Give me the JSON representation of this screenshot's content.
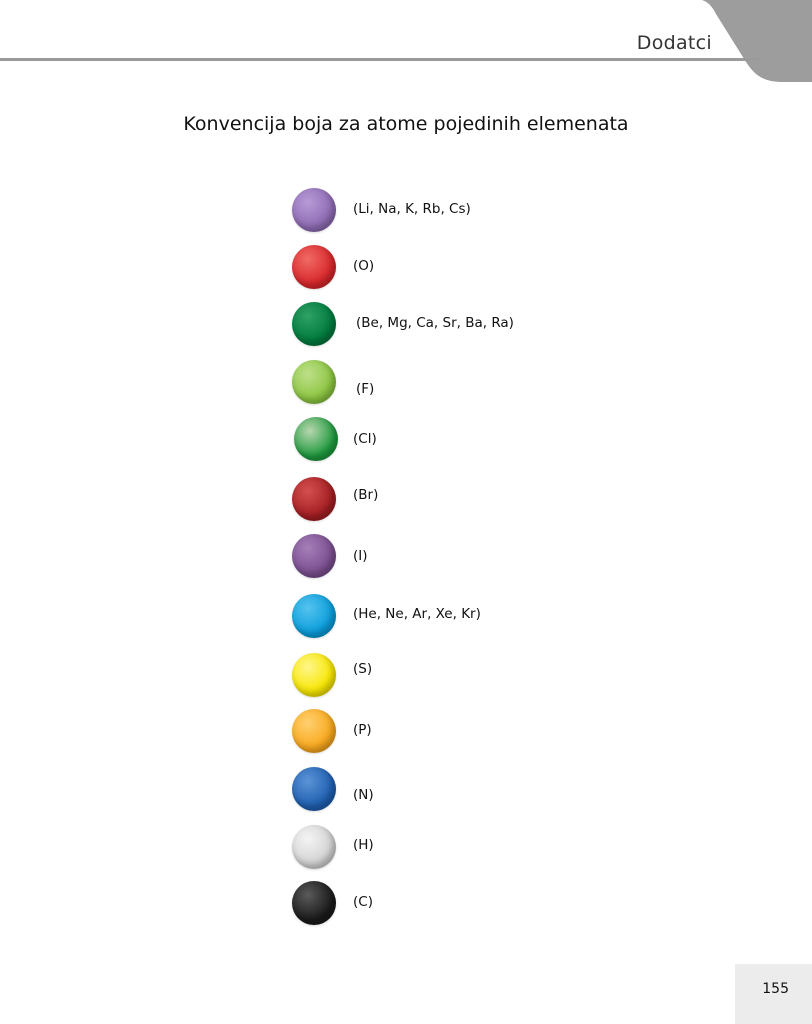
{
  "header": {
    "section": "Dodatci"
  },
  "title": "Konvencija boja za atome pojedinih elemenata",
  "legend": [
    {
      "label": "(Li, Na, K, Rb, Cs)",
      "color": "#8e6bb3",
      "light": "#b79ad6"
    },
    {
      "label": "(O)",
      "color": "#d8272b",
      "light": "#f06a64"
    },
    {
      "label": "(Be, Mg, Ca, Sr, Ba, Ra)",
      "color": "#007a3d",
      "light": "#2fa165"
    },
    {
      "label": "(F)",
      "color": "#8cc540",
      "light": "#bde08a"
    },
    {
      "label": "(Cl)",
      "color": "#1e9a3e",
      "light": "#b8d6ae"
    },
    {
      "label": "(Br)",
      "color": "#a31e22",
      "light": "#d4504f"
    },
    {
      "label": "(I)",
      "color": "#7a4e8f",
      "light": "#a57fb8"
    },
    {
      "label": "(He, Ne, Ar, Xe, Kr)",
      "color": "#0a9ddb",
      "light": "#55c3ef"
    },
    {
      "label": "(S)",
      "color": "#f7e600",
      "light": "#fff68a"
    },
    {
      "label": "(P)",
      "color": "#f8a81c",
      "light": "#ffd070"
    },
    {
      "label": "(N)",
      "color": "#1f5fb0",
      "light": "#5b93d6"
    },
    {
      "label": "(H)",
      "color": "#d2d2d2",
      "light": "#f4f4f4"
    },
    {
      "label": "(C)",
      "color": "#1a1a1a",
      "light": "#5a5a5a"
    }
  ],
  "page_number": "155"
}
